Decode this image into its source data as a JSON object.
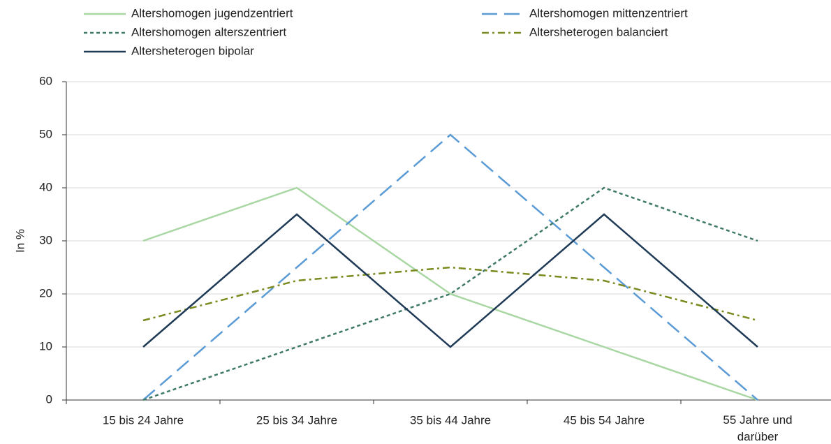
{
  "chart_data": {
    "type": "line",
    "y_label": "In %",
    "categories": [
      "15 bis 24 Jahre",
      "25 bis 34 Jahre",
      "35 bis 44 Jahre",
      "45 bis 54 Jahre",
      "55 Jahre und darüber"
    ],
    "series": [
      {
        "name": "Altershomogen jugendzentriert",
        "color": "#a9d7a3",
        "dash": "solid",
        "values": [
          30,
          40,
          20,
          10,
          0
        ]
      },
      {
        "name": "Altershomogen mittenzentriert",
        "color": "#5b9bd5",
        "dash": "dashed",
        "values": [
          0,
          25,
          50,
          25,
          0
        ]
      },
      {
        "name": "Altershomogen alterszentriert",
        "color": "#3f7a66",
        "dash": "dotted",
        "values": [
          0,
          10,
          20,
          40,
          30
        ]
      },
      {
        "name": "Altersheterogen balanciert",
        "color": "#7a8a1e",
        "dash": "dashdot",
        "values": [
          15,
          22.5,
          25,
          22.5,
          15
        ]
      },
      {
        "name": "Altersheterogen bipolar",
        "color": "#1f3a56",
        "dash": "solid",
        "values": [
          10,
          35,
          10,
          35,
          10
        ]
      }
    ],
    "ylim": [
      0,
      60
    ],
    "yticks": [
      0,
      10,
      20,
      30,
      40,
      50,
      60
    ],
    "grid": true,
    "legend": "top"
  }
}
